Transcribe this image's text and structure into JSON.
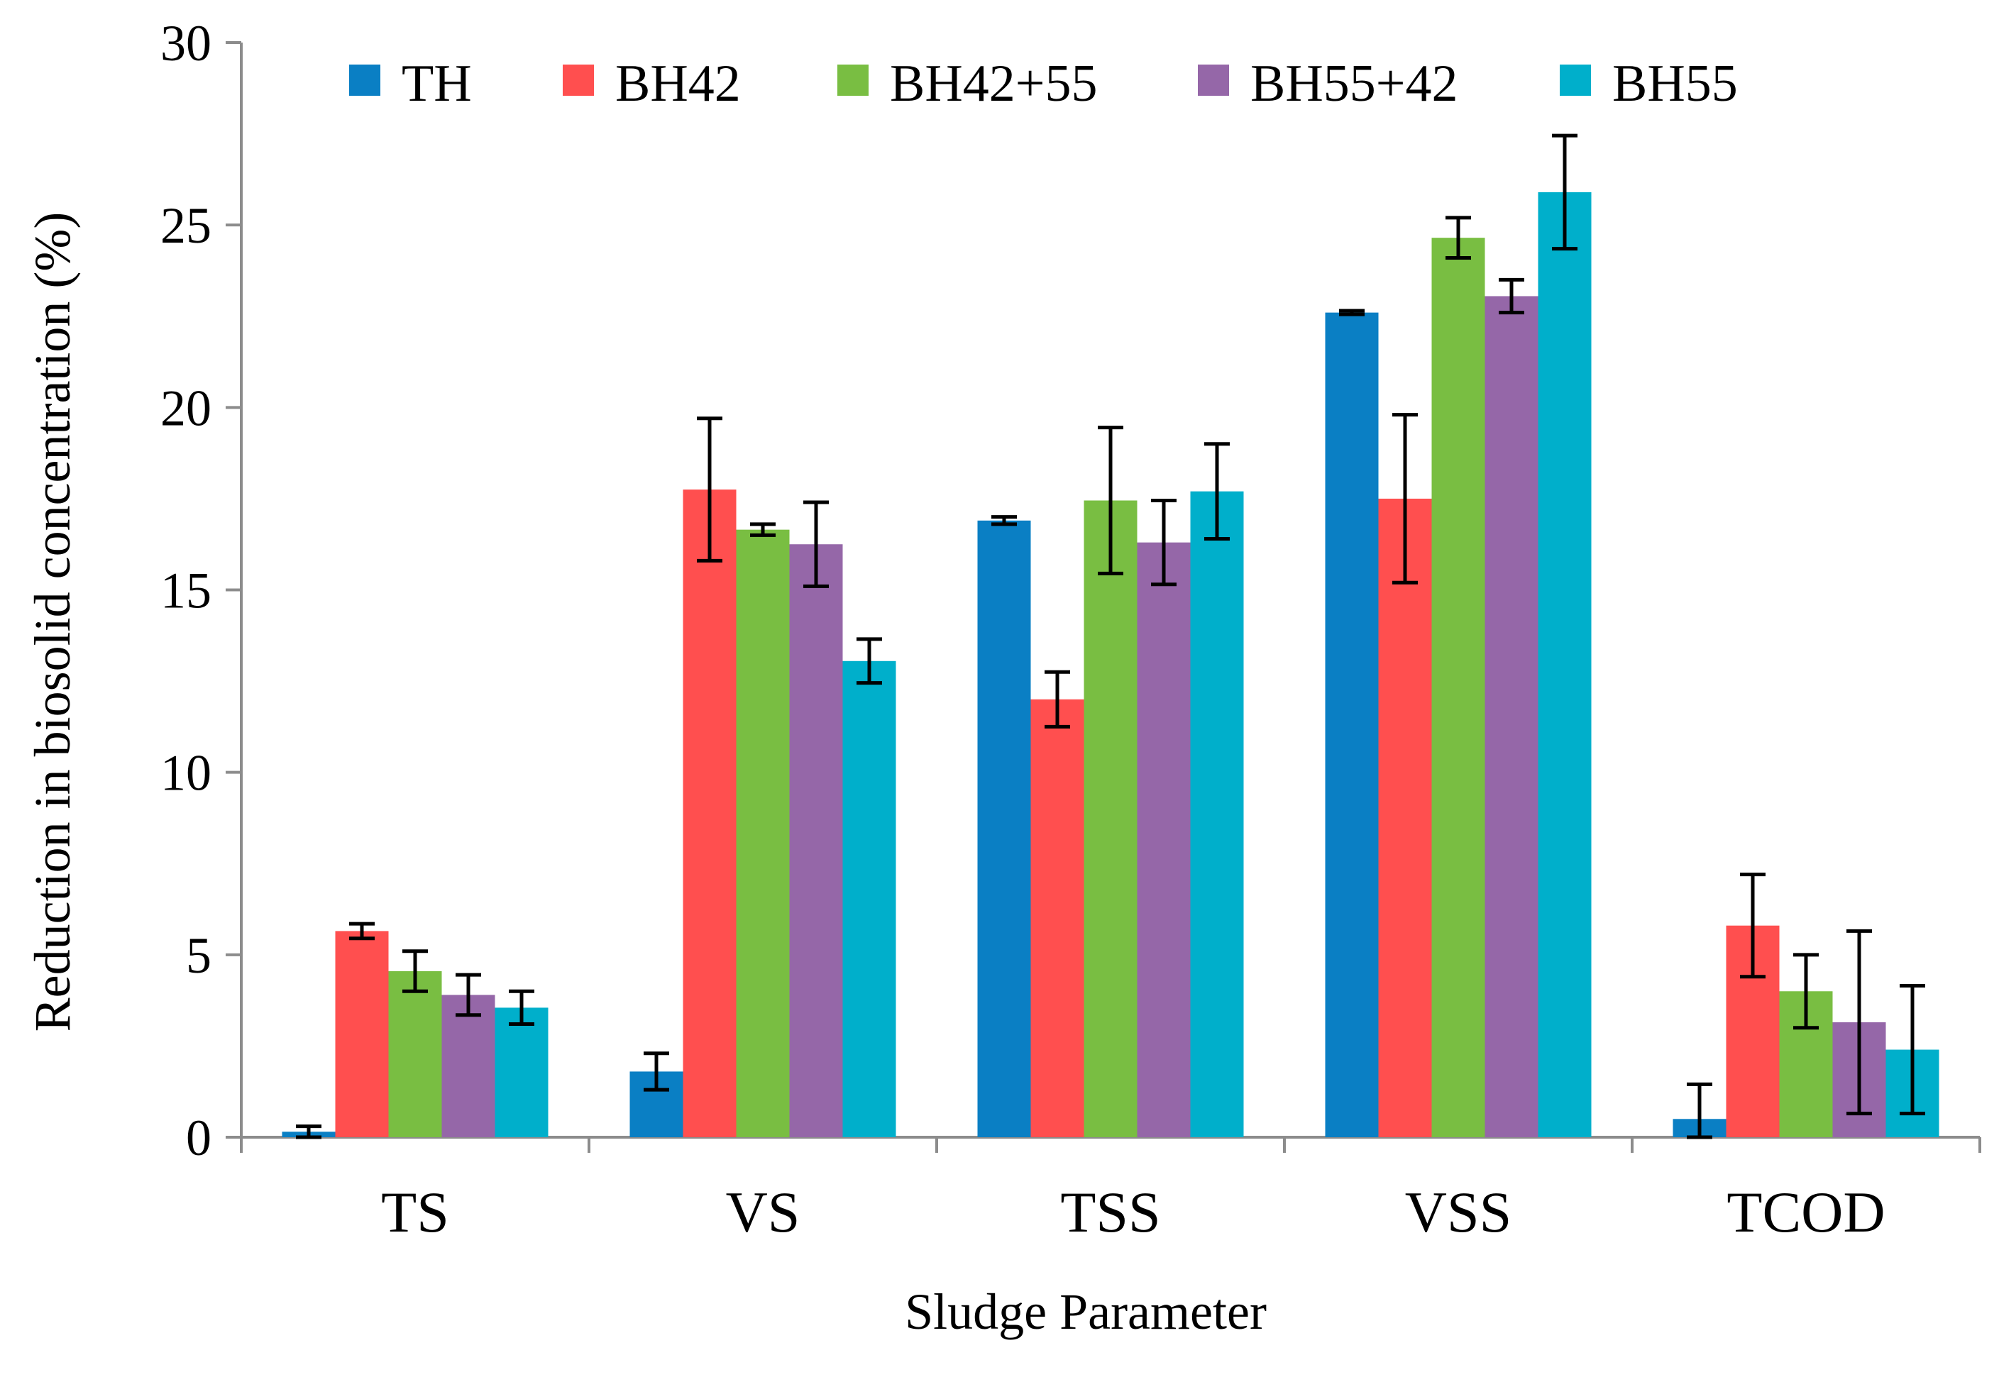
{
  "chart_data": {
    "type": "bar",
    "title": "",
    "xlabel": "Sludge Parameter",
    "ylabel": "Reduction in biosolid concentration (%)",
    "ylim": [
      0,
      30
    ],
    "yticks": [
      0,
      5,
      10,
      15,
      20,
      25,
      30
    ],
    "ytick_labels": [
      "0",
      "5",
      "10",
      "15",
      "20",
      "25",
      "30"
    ],
    "grid": false,
    "legend_position": "top",
    "categories": [
      "TS",
      "VS",
      "TSS",
      "VSS",
      "TCOD"
    ],
    "series": [
      {
        "name": "TH",
        "color": "#0A7FC4",
        "values": [
          0.15,
          1.8,
          16.9,
          22.6,
          0.5
        ],
        "errors": [
          0.15,
          0.5,
          0.1,
          0.05,
          0.95
        ]
      },
      {
        "name": "BH42",
        "color": "#FF4F4F",
        "values": [
          5.65,
          17.75,
          12.0,
          17.5,
          5.8
        ],
        "errors": [
          0.2,
          1.95,
          0.75,
          2.3,
          1.4
        ]
      },
      {
        "name": "BH42+55",
        "color": "#79BE42",
        "values": [
          4.55,
          16.65,
          17.45,
          24.65,
          4.0
        ],
        "errors": [
          0.55,
          0.15,
          2.0,
          0.55,
          1.0
        ]
      },
      {
        "name": "BH55+42",
        "color": "#9567A8",
        "values": [
          3.9,
          16.25,
          16.3,
          23.05,
          3.15
        ],
        "errors": [
          0.55,
          1.15,
          1.15,
          0.45,
          2.5
        ]
      },
      {
        "name": "BH55",
        "color": "#00AFCB",
        "values": [
          3.55,
          13.05,
          17.7,
          25.9,
          2.4
        ],
        "errors": [
          0.45,
          0.6,
          1.3,
          1.55,
          1.75
        ]
      }
    ]
  }
}
